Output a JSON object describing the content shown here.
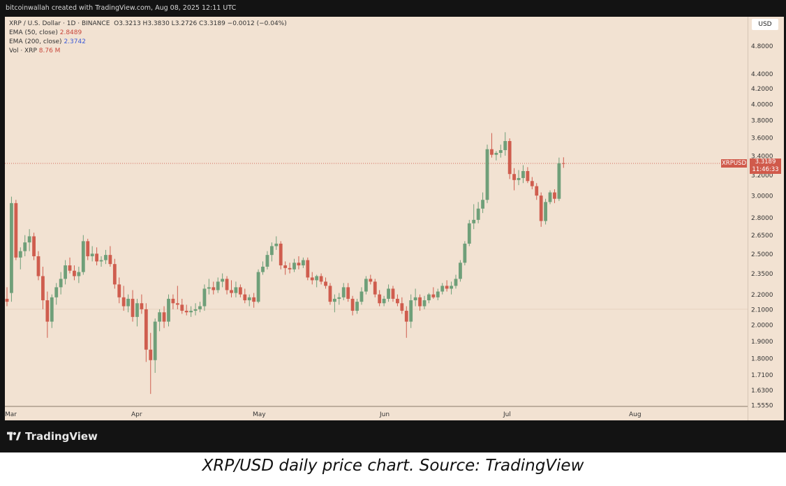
{
  "header": {
    "note": "bitcoinwallah created with TradingView.com, Aug 08, 2025 12:11 UTC"
  },
  "legend": {
    "symbol_line": "XRP / U.S. Dollar · 1D · BINANCE",
    "ohlc": "O3.3213  H3.3830  L3.2726  C3.3189  −0.0012 (−0.04%)",
    "ema50_label": "EMA (50, close)",
    "ema50_value": "2.8489",
    "ema200_label": "EMA (200, close)",
    "ema200_value": "2.3742",
    "vol_label": "Vol · XRP",
    "vol_value": "8.76 M"
  },
  "currency_button": "USD",
  "price_tag": {
    "symbol": "XRPUSD",
    "price": "3.3189",
    "countdown": "11:46:33"
  },
  "footer": {
    "brand": "TradingView"
  },
  "caption": "XRP/USD daily price chart. Source: TradingView",
  "colors": {
    "up": "#6f9f79",
    "down": "#cf5d4e",
    "background": "#f2e2d2",
    "frame": "#131313"
  },
  "chart_data": {
    "type": "candlestick",
    "title": "XRP / U.S. Dollar · 1D · BINANCE",
    "scale": "log",
    "ylim": [
      1.555,
      5.0
    ],
    "y_ticks": [
      "4.8000",
      "4.4000",
      "4.2000",
      "4.0000",
      "3.8000",
      "3.6000",
      "3.4000",
      "3.2000",
      "3.0000",
      "2.8000",
      "2.6500",
      "2.5000",
      "2.3500",
      "2.2000",
      "2.1000",
      "2.0000",
      "1.9000",
      "1.8000",
      "1.7100",
      "1.6300",
      "1.5550"
    ],
    "x_ticks": [
      "Mar",
      "Apr",
      "May",
      "Jun",
      "Jul",
      "Aug"
    ],
    "grid": false,
    "last_price": 3.3189,
    "reference_level": 2.1,
    "candles": [
      {
        "o": 2.17,
        "h": 2.25,
        "l": 2.12,
        "c": 2.15
      },
      {
        "o": 2.21,
        "h": 2.99,
        "l": 2.15,
        "c": 2.93
      },
      {
        "o": 2.93,
        "h": 2.96,
        "l": 2.45,
        "c": 2.47
      },
      {
        "o": 2.47,
        "h": 2.55,
        "l": 2.38,
        "c": 2.52
      },
      {
        "o": 2.52,
        "h": 2.65,
        "l": 2.48,
        "c": 2.59
      },
      {
        "o": 2.59,
        "h": 2.7,
        "l": 2.52,
        "c": 2.64
      },
      {
        "o": 2.64,
        "h": 2.67,
        "l": 2.45,
        "c": 2.48
      },
      {
        "o": 2.48,
        "h": 2.52,
        "l": 2.3,
        "c": 2.33
      },
      {
        "o": 2.33,
        "h": 2.4,
        "l": 2.1,
        "c": 2.16
      },
      {
        "o": 2.16,
        "h": 2.22,
        "l": 1.92,
        "c": 2.02
      },
      {
        "o": 2.02,
        "h": 2.2,
        "l": 1.98,
        "c": 2.18
      },
      {
        "o": 2.18,
        "h": 2.28,
        "l": 2.13,
        "c": 2.25
      },
      {
        "o": 2.25,
        "h": 2.36,
        "l": 2.2,
        "c": 2.31
      },
      {
        "o": 2.31,
        "h": 2.45,
        "l": 2.27,
        "c": 2.41
      },
      {
        "o": 2.41,
        "h": 2.47,
        "l": 2.35,
        "c": 2.37
      },
      {
        "o": 2.37,
        "h": 2.41,
        "l": 2.3,
        "c": 2.33
      },
      {
        "o": 2.33,
        "h": 2.4,
        "l": 2.28,
        "c": 2.36
      },
      {
        "o": 2.36,
        "h": 2.65,
        "l": 2.34,
        "c": 2.6
      },
      {
        "o": 2.6,
        "h": 2.62,
        "l": 2.45,
        "c": 2.48
      },
      {
        "o": 2.48,
        "h": 2.56,
        "l": 2.44,
        "c": 2.5
      },
      {
        "o": 2.5,
        "h": 2.55,
        "l": 2.41,
        "c": 2.44
      },
      {
        "o": 2.44,
        "h": 2.48,
        "l": 2.4,
        "c": 2.45
      },
      {
        "o": 2.45,
        "h": 2.53,
        "l": 2.42,
        "c": 2.49
      },
      {
        "o": 2.49,
        "h": 2.56,
        "l": 2.4,
        "c": 2.42
      },
      {
        "o": 2.42,
        "h": 2.46,
        "l": 2.24,
        "c": 2.27
      },
      {
        "o": 2.27,
        "h": 2.32,
        "l": 2.14,
        "c": 2.18
      },
      {
        "o": 2.18,
        "h": 2.26,
        "l": 2.09,
        "c": 2.12
      },
      {
        "o": 2.12,
        "h": 2.2,
        "l": 2.08,
        "c": 2.17
      },
      {
        "o": 2.17,
        "h": 2.23,
        "l": 2.02,
        "c": 2.05
      },
      {
        "o": 2.05,
        "h": 2.17,
        "l": 1.99,
        "c": 2.14
      },
      {
        "o": 2.14,
        "h": 2.2,
        "l": 2.07,
        "c": 2.1
      },
      {
        "o": 2.1,
        "h": 2.14,
        "l": 1.78,
        "c": 1.85
      },
      {
        "o": 1.85,
        "h": 1.95,
        "l": 1.61,
        "c": 1.79
      },
      {
        "o": 1.79,
        "h": 2.04,
        "l": 1.72,
        "c": 2.02
      },
      {
        "o": 2.02,
        "h": 2.1,
        "l": 1.96,
        "c": 2.08
      },
      {
        "o": 2.08,
        "h": 2.12,
        "l": 1.98,
        "c": 2.02
      },
      {
        "o": 2.02,
        "h": 2.2,
        "l": 1.99,
        "c": 2.17
      },
      {
        "o": 2.17,
        "h": 2.2,
        "l": 2.1,
        "c": 2.14
      },
      {
        "o": 2.14,
        "h": 2.26,
        "l": 2.1,
        "c": 2.13
      },
      {
        "o": 2.13,
        "h": 2.17,
        "l": 2.07,
        "c": 2.09
      },
      {
        "o": 2.09,
        "h": 2.13,
        "l": 2.06,
        "c": 2.08
      },
      {
        "o": 2.08,
        "h": 2.12,
        "l": 2.05,
        "c": 2.09
      },
      {
        "o": 2.09,
        "h": 2.14,
        "l": 2.06,
        "c": 2.1
      },
      {
        "o": 2.1,
        "h": 2.15,
        "l": 2.08,
        "c": 2.12
      },
      {
        "o": 2.12,
        "h": 2.27,
        "l": 2.09,
        "c": 2.24
      },
      {
        "o": 2.24,
        "h": 2.31,
        "l": 2.2,
        "c": 2.25
      },
      {
        "o": 2.25,
        "h": 2.29,
        "l": 2.2,
        "c": 2.23
      },
      {
        "o": 2.23,
        "h": 2.32,
        "l": 2.21,
        "c": 2.29
      },
      {
        "o": 2.29,
        "h": 2.35,
        "l": 2.25,
        "c": 2.31
      },
      {
        "o": 2.31,
        "h": 2.33,
        "l": 2.2,
        "c": 2.23
      },
      {
        "o": 2.23,
        "h": 2.3,
        "l": 2.18,
        "c": 2.21
      },
      {
        "o": 2.21,
        "h": 2.29,
        "l": 2.18,
        "c": 2.25
      },
      {
        "o": 2.25,
        "h": 2.27,
        "l": 2.18,
        "c": 2.2
      },
      {
        "o": 2.2,
        "h": 2.24,
        "l": 2.14,
        "c": 2.16
      },
      {
        "o": 2.16,
        "h": 2.2,
        "l": 2.12,
        "c": 2.18
      },
      {
        "o": 2.18,
        "h": 2.21,
        "l": 2.11,
        "c": 2.15
      },
      {
        "o": 2.15,
        "h": 2.38,
        "l": 2.14,
        "c": 2.36
      },
      {
        "o": 2.36,
        "h": 2.44,
        "l": 2.34,
        "c": 2.4
      },
      {
        "o": 2.4,
        "h": 2.52,
        "l": 2.38,
        "c": 2.49
      },
      {
        "o": 2.49,
        "h": 2.59,
        "l": 2.44,
        "c": 2.56
      },
      {
        "o": 2.56,
        "h": 2.64,
        "l": 2.53,
        "c": 2.58
      },
      {
        "o": 2.58,
        "h": 2.6,
        "l": 2.38,
        "c": 2.41
      },
      {
        "o": 2.41,
        "h": 2.44,
        "l": 2.34,
        "c": 2.39
      },
      {
        "o": 2.39,
        "h": 2.43,
        "l": 2.35,
        "c": 2.38
      },
      {
        "o": 2.38,
        "h": 2.46,
        "l": 2.36,
        "c": 2.43
      },
      {
        "o": 2.43,
        "h": 2.48,
        "l": 2.38,
        "c": 2.41
      },
      {
        "o": 2.41,
        "h": 2.47,
        "l": 2.39,
        "c": 2.45
      },
      {
        "o": 2.45,
        "h": 2.47,
        "l": 2.3,
        "c": 2.32
      },
      {
        "o": 2.32,
        "h": 2.36,
        "l": 2.27,
        "c": 2.3
      },
      {
        "o": 2.3,
        "h": 2.34,
        "l": 2.25,
        "c": 2.33
      },
      {
        "o": 2.33,
        "h": 2.35,
        "l": 2.27,
        "c": 2.29
      },
      {
        "o": 2.29,
        "h": 2.32,
        "l": 2.24,
        "c": 2.26
      },
      {
        "o": 2.26,
        "h": 2.28,
        "l": 2.13,
        "c": 2.15
      },
      {
        "o": 2.15,
        "h": 2.2,
        "l": 2.08,
        "c": 2.17
      },
      {
        "o": 2.17,
        "h": 2.21,
        "l": 2.13,
        "c": 2.18
      },
      {
        "o": 2.18,
        "h": 2.28,
        "l": 2.16,
        "c": 2.25
      },
      {
        "o": 2.25,
        "h": 2.28,
        "l": 2.15,
        "c": 2.17
      },
      {
        "o": 2.17,
        "h": 2.19,
        "l": 2.06,
        "c": 2.09
      },
      {
        "o": 2.09,
        "h": 2.17,
        "l": 2.07,
        "c": 2.15
      },
      {
        "o": 2.15,
        "h": 2.25,
        "l": 2.13,
        "c": 2.22
      },
      {
        "o": 2.22,
        "h": 2.33,
        "l": 2.2,
        "c": 2.31
      },
      {
        "o": 2.31,
        "h": 2.34,
        "l": 2.27,
        "c": 2.29
      },
      {
        "o": 2.29,
        "h": 2.31,
        "l": 2.18,
        "c": 2.2
      },
      {
        "o": 2.2,
        "h": 2.23,
        "l": 2.12,
        "c": 2.14
      },
      {
        "o": 2.14,
        "h": 2.19,
        "l": 2.12,
        "c": 2.17
      },
      {
        "o": 2.17,
        "h": 2.27,
        "l": 2.15,
        "c": 2.24
      },
      {
        "o": 2.24,
        "h": 2.26,
        "l": 2.15,
        "c": 2.17
      },
      {
        "o": 2.17,
        "h": 2.2,
        "l": 2.12,
        "c": 2.14
      },
      {
        "o": 2.14,
        "h": 2.18,
        "l": 2.07,
        "c": 2.09
      },
      {
        "o": 2.09,
        "h": 2.12,
        "l": 1.92,
        "c": 2.02
      },
      {
        "o": 2.02,
        "h": 2.2,
        "l": 1.98,
        "c": 2.16
      },
      {
        "o": 2.16,
        "h": 2.24,
        "l": 2.12,
        "c": 2.18
      },
      {
        "o": 2.18,
        "h": 2.2,
        "l": 2.09,
        "c": 2.12
      },
      {
        "o": 2.12,
        "h": 2.19,
        "l": 2.1,
        "c": 2.16
      },
      {
        "o": 2.16,
        "h": 2.21,
        "l": 2.14,
        "c": 2.2
      },
      {
        "o": 2.2,
        "h": 2.25,
        "l": 2.17,
        "c": 2.18
      },
      {
        "o": 2.18,
        "h": 2.24,
        "l": 2.16,
        "c": 2.22
      },
      {
        "o": 2.22,
        "h": 2.28,
        "l": 2.2,
        "c": 2.26
      },
      {
        "o": 2.26,
        "h": 2.3,
        "l": 2.22,
        "c": 2.24
      },
      {
        "o": 2.24,
        "h": 2.29,
        "l": 2.2,
        "c": 2.26
      },
      {
        "o": 2.26,
        "h": 2.34,
        "l": 2.24,
        "c": 2.31
      },
      {
        "o": 2.31,
        "h": 2.45,
        "l": 2.29,
        "c": 2.43
      },
      {
        "o": 2.43,
        "h": 2.6,
        "l": 2.41,
        "c": 2.58
      },
      {
        "o": 2.58,
        "h": 2.78,
        "l": 2.56,
        "c": 2.75
      },
      {
        "o": 2.75,
        "h": 2.92,
        "l": 2.7,
        "c": 2.78
      },
      {
        "o": 2.78,
        "h": 2.94,
        "l": 2.75,
        "c": 2.88
      },
      {
        "o": 2.88,
        "h": 3.03,
        "l": 2.84,
        "c": 2.96
      },
      {
        "o": 2.96,
        "h": 3.52,
        "l": 2.93,
        "c": 3.47
      },
      {
        "o": 3.47,
        "h": 3.65,
        "l": 3.38,
        "c": 3.41
      },
      {
        "o": 3.41,
        "h": 3.45,
        "l": 3.35,
        "c": 3.43
      },
      {
        "o": 3.43,
        "h": 3.52,
        "l": 3.38,
        "c": 3.46
      },
      {
        "o": 3.46,
        "h": 3.66,
        "l": 3.4,
        "c": 3.56
      },
      {
        "o": 3.56,
        "h": 3.59,
        "l": 3.16,
        "c": 3.21
      },
      {
        "o": 3.21,
        "h": 3.27,
        "l": 3.05,
        "c": 3.15
      },
      {
        "o": 3.15,
        "h": 3.25,
        "l": 3.1,
        "c": 3.17
      },
      {
        "o": 3.17,
        "h": 3.3,
        "l": 3.12,
        "c": 3.24
      },
      {
        "o": 3.24,
        "h": 3.28,
        "l": 3.12,
        "c": 3.14
      },
      {
        "o": 3.14,
        "h": 3.18,
        "l": 3.06,
        "c": 3.09
      },
      {
        "o": 3.09,
        "h": 3.12,
        "l": 2.96,
        "c": 3.0
      },
      {
        "o": 3.0,
        "h": 3.03,
        "l": 2.72,
        "c": 2.77
      },
      {
        "o": 2.77,
        "h": 2.97,
        "l": 2.74,
        "c": 2.94
      },
      {
        "o": 2.94,
        "h": 3.05,
        "l": 2.92,
        "c": 3.03
      },
      {
        "o": 3.03,
        "h": 3.06,
        "l": 2.93,
        "c": 2.97
      },
      {
        "o": 2.97,
        "h": 3.38,
        "l": 2.95,
        "c": 3.32
      },
      {
        "o": 3.3213,
        "h": 3.383,
        "l": 3.2726,
        "c": 3.3189
      }
    ]
  }
}
